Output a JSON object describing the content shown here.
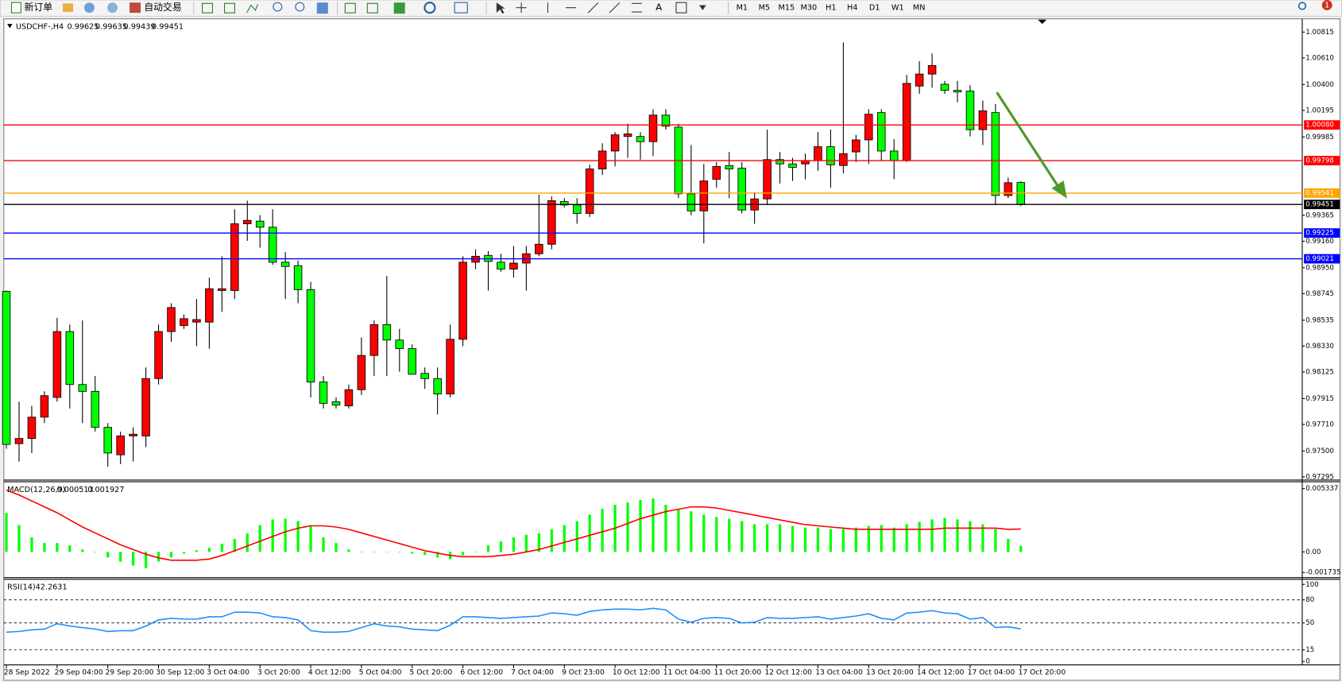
{
  "toolbar": {
    "new_order": "新订单",
    "auto_trading": "自动交易",
    "text_tool": "A",
    "timeframes": [
      "M1",
      "M5",
      "M15",
      "M30",
      "H1",
      "H4",
      "D1",
      "W1",
      "MN"
    ],
    "alerts": "1"
  },
  "chart_data": [
    {
      "type": "candlestick",
      "title": "USDCHF-,H4",
      "categories": [
        "28 Sep 2022",
        null,
        null,
        null,
        "29 Sep 04:00",
        null,
        null,
        null,
        "29 Sep 20:00",
        null,
        null,
        null,
        "30 Sep 12:00",
        null,
        null,
        null,
        "3 Oct 04:00",
        null,
        null,
        null,
        "3 Oct 20:00",
        null,
        null,
        null,
        "4 Oct 12:00",
        null,
        null,
        null,
        "5 Oct 04:00",
        null,
        null,
        null,
        "5 Oct 20:00",
        null,
        null,
        null,
        "6 Oct 12:00",
        null,
        null,
        null,
        "7 Oct 04:00",
        null,
        null,
        null,
        "9 Oct 23:00",
        null,
        null,
        null,
        "10 Oct 12:00",
        null,
        null,
        null,
        "11 Oct 04:00",
        null,
        null,
        null,
        "11 Oct 20:00",
        null,
        null,
        null,
        "12 Oct 12:00",
        null,
        null,
        null,
        "13 Oct 04:00",
        null,
        null,
        null,
        "13 Oct 20:00",
        null,
        null,
        null,
        "14 Oct 12:00",
        null,
        null,
        null,
        "17 Oct 04:00",
        null,
        null,
        null,
        "17 Oct 20:00"
      ],
      "open": [
        0.98763,
        0.97558,
        0.97599,
        0.97768,
        0.97924,
        0.98445,
        0.98026,
        0.97972,
        0.97687,
        0.9747,
        0.97619,
        0.97619,
        0.98073,
        0.98445,
        0.98493,
        0.9852,
        0.9852,
        0.9877,
        0.9877,
        0.99298,
        0.99319,
        0.99271,
        0.98994,
        0.98967,
        0.98777,
        0.98046,
        0.9789,
        0.97857,
        0.97985,
        0.98256,
        0.985,
        0.98378,
        0.9831,
        0.98114,
        0.98073,
        0.97951,
        0.98384,
        0.98994,
        0.99048,
        0.98994,
        0.98939,
        0.98987,
        0.99061,
        0.99136,
        0.99474,
        0.99447,
        0.9938,
        0.99732,
        0.99874,
        0.99989,
        0.99989,
        0.99948,
        1.00158,
        1.00063,
        0.99535,
        0.994,
        0.9965,
        0.99759,
        0.99738,
        0.99407,
        0.99495,
        0.99806,
        0.99772,
        0.99772,
        0.99799,
        0.99908,
        0.99759,
        0.99867,
        0.99962,
        1.00178,
        0.99874,
        0.99799,
        1.00388,
        1.00483,
        1.00402,
        1.00354,
        1.00348,
        1.00043,
        1.00178,
        0.99522,
        0.99625
      ],
      "high": [
        0.9877,
        0.9789,
        0.97857,
        0.97972,
        0.98554,
        0.985,
        0.98533,
        0.98093,
        0.97721,
        0.97653,
        0.97687,
        0.98161,
        0.985,
        0.98669,
        0.98581,
        0.98703,
        0.98872,
        0.99041,
        0.99413,
        0.99481,
        0.99366,
        0.99413,
        0.99075,
        0.99007,
        0.98838,
        0.98093,
        0.97924,
        0.98026,
        0.98398,
        0.98533,
        0.98885,
        0.98466,
        0.98344,
        0.98161,
        0.98161,
        0.985,
        0.99041,
        0.99095,
        0.99082,
        0.99061,
        0.99122,
        0.99122,
        0.99528,
        0.99515,
        0.99501,
        0.99501,
        0.99765,
        0.99935,
        1.00023,
        1.0009,
        1.00023,
        1.00205,
        1.00205,
        1.0009,
        0.99921,
        0.99772,
        0.99786,
        0.99867,
        0.99786,
        0.99549,
        1.00043,
        0.99867,
        0.9982,
        0.99853,
        1.00023,
        1.00043,
        1.00733,
        1.00002,
        1.00205,
        1.00205,
        0.99969,
        1.00476,
        1.00585,
        1.00645,
        1.00429,
        1.00429,
        1.00395,
        1.00273,
        1.00246,
        0.99664,
        0.99635
      ],
      "low": [
        0.97518,
        0.97416,
        0.97484,
        0.97721,
        0.9789,
        0.97836,
        0.97721,
        0.97653,
        0.97376,
        0.97396,
        0.97416,
        0.97531,
        0.98026,
        0.98364,
        0.98466,
        0.9833,
        0.9831,
        0.98601,
        0.98703,
        0.99163,
        0.99109,
        0.98973,
        0.98703,
        0.98669,
        0.97924,
        0.97836,
        0.97836,
        0.97836,
        0.97944,
        0.98093,
        0.98093,
        0.98127,
        0.98107,
        0.97992,
        0.97789,
        0.97924,
        0.9833,
        0.98939,
        0.9877,
        0.98919,
        0.98872,
        0.9877,
        0.99041,
        0.99095,
        0.99427,
        0.99298,
        0.99352,
        0.99684,
        0.99752,
        0.9982,
        0.99806,
        0.99833,
        1.00043,
        0.99501,
        0.99366,
        0.99143,
        0.99583,
        0.99501,
        0.9938,
        0.99298,
        0.99447,
        0.99617,
        0.99637,
        0.9965,
        0.99718,
        0.99583,
        0.99698,
        0.99786,
        0.99772,
        0.99799,
        0.9965,
        0.99786,
        1.00327,
        1.00375,
        1.00327,
        1.0026,
        0.99989,
        0.99921,
        0.99447,
        0.99501,
        0.99439
      ],
      "close": [
        0.97552,
        0.97599,
        0.97768,
        0.97938,
        0.98445,
        0.98026,
        0.97972,
        0.97687,
        0.97484,
        0.97619,
        0.97633,
        0.98073,
        0.98445,
        0.98635,
        0.98547,
        0.9854,
        0.98784,
        0.98784,
        0.99298,
        0.99325,
        0.99271,
        0.98994,
        0.9896,
        0.98777,
        0.98046,
        0.97877,
        0.97863,
        0.97985,
        0.98256,
        0.985,
        0.98378,
        0.9831,
        0.98107,
        0.98073,
        0.97951,
        0.98384,
        0.98994,
        0.99041,
        0.99,
        0.98939,
        0.98987,
        0.99061,
        0.99136,
        0.99481,
        0.99447,
        0.9938,
        0.99732,
        0.99874,
        1.00002,
        1.00009,
        0.99948,
        1.00158,
        1.0007,
        0.99535,
        0.994,
        0.99637,
        0.99752,
        0.99732,
        0.99407,
        0.99495,
        0.99806,
        0.99772,
        0.99745,
        0.99799,
        0.99908,
        0.99765,
        0.99853,
        0.99962,
        1.00165,
        0.99874,
        0.99799,
        1.00409,
        1.00483,
        1.00551,
        1.00354,
        1.00341,
        1.00043,
        1.00192,
        0.99522,
        0.99623,
        0.99451
      ],
      "up_color": "#ff0000",
      "down_color": "#00ff00",
      "ylim": [
        0.9727,
        1.0092
      ],
      "yticks": [
        1.00815,
        {
          "value": 1.0061,
          "label": "1.00610"
        },
        {
          "value": 1.004,
          "label": "1.00400"
        },
        1.00195,
        0.99985,
        0.99365,
        {
          "value": 0.9916,
          "label": "0.99160"
        },
        {
          "value": 0.9895,
          "label": "0.98950"
        },
        0.98745,
        0.98535,
        {
          "value": 0.9833,
          "label": "0.98330"
        },
        0.98125,
        0.97915,
        {
          "value": 0.9771,
          "label": "0.97710"
        },
        {
          "value": 0.975,
          "label": "0.97500"
        },
        0.97295
      ],
      "levels": [
        {
          "value": 1.0008,
          "label": "1.00080",
          "color": "#ff0000"
        },
        {
          "value": 0.99798,
          "label": "0.99798",
          "color": "#ff0000"
        },
        {
          "value": 0.99541,
          "label": "0.99541",
          "color": "#ffa500"
        },
        {
          "value": 0.99451,
          "label": "0.99451",
          "color": "#000000"
        },
        {
          "value": 0.99225,
          "label": "0.99225",
          "color": "#0000ff"
        },
        {
          "value": 0.99021,
          "label": "0.99021",
          "color": "#0000ff"
        }
      ]
    },
    {
      "type": "macd",
      "title": "MACD(12,26,9)",
      "series": [
        {
          "type": "bar",
          "color": "#00ff00",
          "values": [
            0.00328,
            0.00226,
            0.00123,
            0.00075,
            0.00075,
            0.00055,
            0.00021,
            0,
            -0.00048,
            -0.00082,
            -0.00116,
            -0.00137,
            -0.00082,
            -0.00048,
            -0.00014,
            0.00014,
            0.00034,
            0.00068,
            0.00109,
            0.00157,
            0.00226,
            0.00274,
            0.0028,
            0.0026,
            0.00226,
            0.00123,
            0.00075,
            0.00021,
            0,
            0,
            0,
            0,
            -0.00014,
            -0.00027,
            -0.00048,
            -0.00062,
            -0.00027,
            0,
            0.00055,
            0.00089,
            0.00123,
            0.00144,
            0.00157,
            0.00192,
            0.00226,
            0.0026,
            0.00315,
            0.00363,
            0.00397,
            0.00417,
            0.00438,
            0.00451,
            0.00397,
            0.00363,
            0.00342,
            0.00315,
            0.00294,
            0.0028,
            0.0026,
            0.00233,
            0.00233,
            0.00233,
            0.00219,
            0.00205,
            0.00205,
            0.00192,
            0.00192,
            0.00205,
            0.00219,
            0.00226,
            0.00205,
            0.00233,
            0.00253,
            0.00274,
            0.00287,
            0.00274,
            0.0026,
            0.00233,
            0.00192,
            0.00109,
            0.000513
          ]
        },
        {
          "type": "line",
          "color": "#ff0000",
          "values": [
            0.0052,
            0.0048,
            0.0043,
            0.0038,
            0.0033,
            0.0027,
            0.0021,
            0.0016,
            0.0011,
            0.0006,
            0.0002,
            -0.0002,
            -0.0005,
            -0.0007,
            -0.0007,
            -0.0007,
            -0.0006,
            -0.0003,
            0.0001,
            0.0005,
            0.0009,
            0.0013,
            0.0017,
            0.002,
            0.0022,
            0.0022,
            0.0021,
            0.0019,
            0.0016,
            0.0013,
            0.001,
            0.0007,
            0.0004,
            0.0001,
            -0.0001,
            -0.0003,
            -0.0004,
            -0.0004,
            -0.0004,
            -0.0003,
            -0.0002,
            0,
            0.0002,
            0.0005,
            0.0008,
            0.0011,
            0.0014,
            0.0017,
            0.002,
            0.0024,
            0.0028,
            0.0031,
            0.0034,
            0.0036,
            0.0038,
            0.0038,
            0.0037,
            0.0035,
            0.0033,
            0.0031,
            0.0029,
            0.0027,
            0.0025,
            0.0023,
            0.0022,
            0.0021,
            0.002,
            0.0019,
            0.0019,
            0.0019,
            0.0019,
            0.0019,
            0.0019,
            0.0019,
            0.002,
            0.002,
            0.002,
            0.002,
            0.002,
            0.0019,
            0.001927
          ]
        }
      ],
      "ylim": [
        -0.001735,
        0.005337
      ],
      "yticks": [
        0.005337,
        {
          "value": 0,
          "label": "0.00"
        },
        -0.001735
      ]
    },
    {
      "type": "line",
      "title": "RSI(14)",
      "series": [
        {
          "color": "#1e90ff",
          "values": [
            38,
            39,
            41,
            42,
            49,
            46,
            44,
            42,
            39,
            40,
            40,
            46,
            54,
            56,
            55,
            55,
            58,
            58,
            64,
            64,
            63,
            58,
            57,
            54,
            40,
            38,
            38,
            39,
            44,
            49,
            46,
            45,
            42,
            41,
            40,
            47,
            58,
            58,
            57,
            56,
            57,
            58,
            59,
            63,
            62,
            60,
            65,
            67,
            68,
            68,
            67,
            69,
            67,
            55,
            51,
            56,
            57,
            56,
            50,
            51,
            57,
            56,
            56,
            57,
            58,
            55,
            57,
            59,
            62,
            56,
            54,
            63,
            64,
            66,
            63,
            62,
            55,
            57,
            44,
            45,
            42.2631
          ]
        }
      ],
      "ylim": [
        0,
        100
      ],
      "yticks": [
        100,
        80,
        50,
        15,
        0
      ],
      "levels": [
        80,
        50,
        15
      ]
    }
  ]
}
